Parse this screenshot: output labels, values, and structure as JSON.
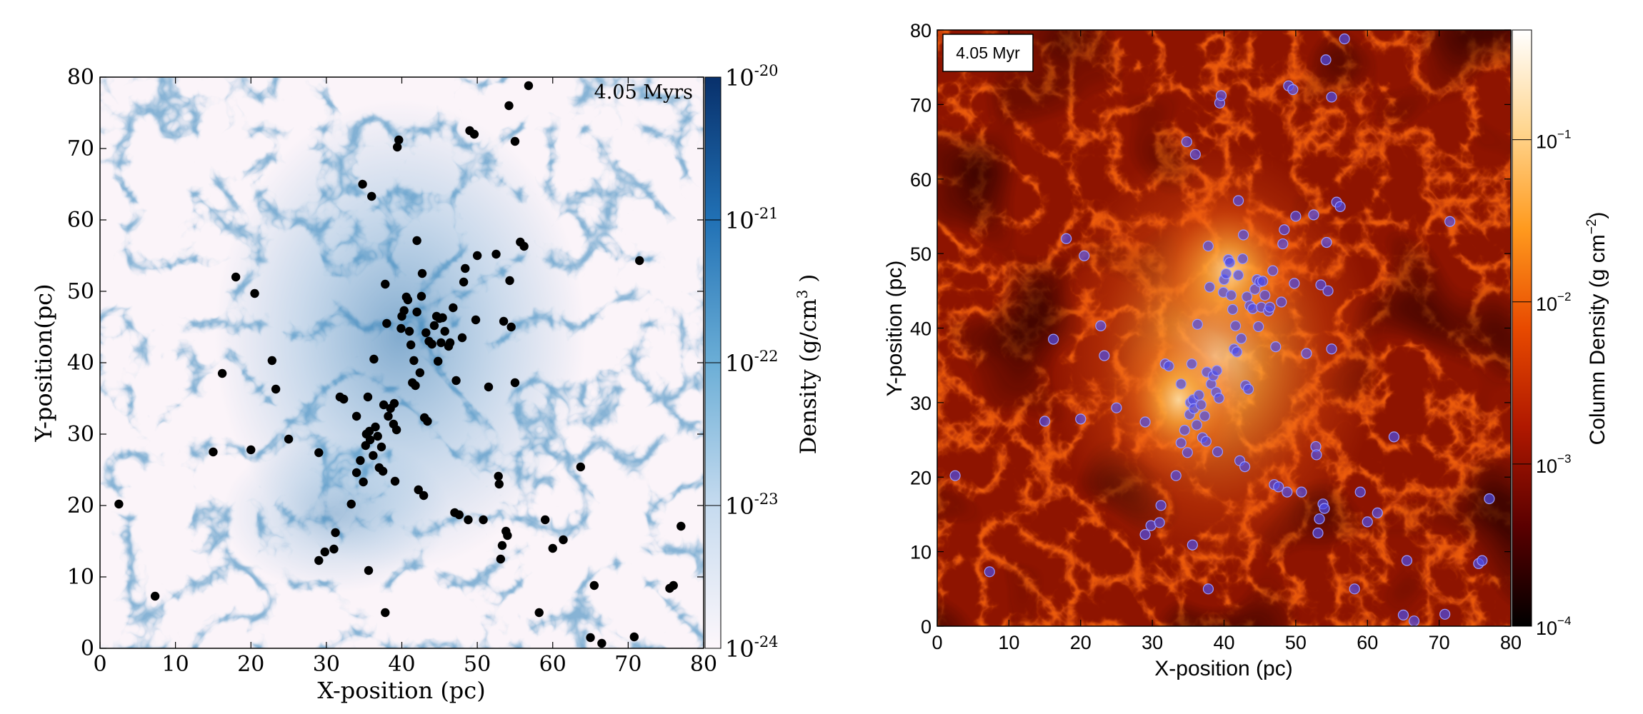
{
  "chart_data": [
    {
      "type": "scatter",
      "style": "density-map",
      "time_label": "4.05 Myrs",
      "xlabel": "X-position (pc)",
      "ylabel": "Y-position(pc)",
      "xlim": [
        0,
        80
      ],
      "ylim": [
        0,
        80
      ],
      "xticks": [
        "0",
        "10",
        "20",
        "30",
        "40",
        "50",
        "60",
        "70",
        "80"
      ],
      "yticks": [
        "0",
        "10",
        "20",
        "30",
        "40",
        "50",
        "60",
        "70",
        "80"
      ],
      "colorbar": {
        "label": "Density (g/cm",
        "label_sup": "3",
        "label_end": " )",
        "scale": "log",
        "colormap": [
          "#fdf7fb",
          "#c6dbef",
          "#6baed6",
          "#2171b5",
          "#08306b"
        ],
        "ticks": [
          {
            "base": "10",
            "exp": "-24"
          },
          {
            "base": "10",
            "exp": "-23"
          },
          {
            "base": "10",
            "exp": "-22"
          },
          {
            "base": "10",
            "exp": "-21"
          },
          {
            "base": "10",
            "exp": "-20"
          }
        ]
      },
      "point_color": "#000000",
      "points": [
        [
          2.5,
          20.2
        ],
        [
          7.3,
          7.3
        ],
        [
          15,
          27.5
        ],
        [
          16.2,
          38.5
        ],
        [
          18,
          52
        ],
        [
          20,
          27.8
        ],
        [
          20.5,
          49.7
        ],
        [
          22.8,
          40.3
        ],
        [
          23.3,
          36.3
        ],
        [
          25,
          29.3
        ],
        [
          29,
          27.4
        ],
        [
          29,
          12.3
        ],
        [
          29.8,
          13.5
        ],
        [
          31.0,
          13.9
        ],
        [
          31.2,
          16.2
        ],
        [
          31.8,
          35.2
        ],
        [
          32.3,
          34.9
        ],
        [
          33.3,
          20.2
        ],
        [
          34.0,
          32.5
        ],
        [
          34.0,
          24.6
        ],
        [
          34.5,
          26.3
        ],
        [
          34.8,
          65.0
        ],
        [
          34.9,
          23.3
        ],
        [
          35.2,
          28.4
        ],
        [
          35.3,
          30.0
        ],
        [
          35.5,
          35.2
        ],
        [
          35.6,
          10.9
        ],
        [
          35.7,
          30.4
        ],
        [
          35.8,
          29.2
        ],
        [
          36.0,
          63.3
        ],
        [
          36.2,
          27.0
        ],
        [
          36.3,
          40.5
        ],
        [
          36.5,
          31.0
        ],
        [
          36.8,
          29.7
        ],
        [
          37.0,
          25.3
        ],
        [
          37.3,
          28.2
        ],
        [
          37.5,
          24.8
        ],
        [
          37.6,
          34.1
        ],
        [
          37.8,
          51.0
        ],
        [
          38.0,
          45.5
        ],
        [
          37.8,
          5.0
        ],
        [
          38.2,
          32.5
        ],
        [
          38.5,
          33.6
        ],
        [
          38.9,
          31.4
        ],
        [
          39.0,
          34.3
        ],
        [
          39.1,
          23.4
        ],
        [
          39.3,
          30.6
        ],
        [
          39.4,
          70.2
        ],
        [
          39.6,
          71.2
        ],
        [
          39.9,
          44.8
        ],
        [
          40.0,
          46.5
        ],
        [
          40.3,
          47.3
        ],
        [
          40.6,
          49.2
        ],
        [
          40.8,
          48.8
        ],
        [
          41.0,
          44.4
        ],
        [
          41.2,
          42.5
        ],
        [
          41.4,
          37.2
        ],
        [
          41.6,
          40.3
        ],
        [
          41.8,
          36.8
        ],
        [
          42.0,
          47.1
        ],
        [
          42.0,
          57.1
        ],
        [
          42.2,
          22.2
        ],
        [
          42.4,
          38.6
        ],
        [
          42.6,
          49.3
        ],
        [
          42.7,
          52.5
        ],
        [
          42.9,
          21.4
        ],
        [
          43.0,
          32.3
        ],
        [
          43.2,
          44.2
        ],
        [
          43.4,
          31.8
        ],
        [
          43.6,
          43.0
        ],
        [
          44.0,
          42.6
        ],
        [
          44.3,
          45.2
        ],
        [
          44.6,
          46.5
        ],
        [
          44.8,
          40.2
        ],
        [
          45.0,
          46.2
        ],
        [
          45.2,
          42.8
        ],
        [
          45.4,
          46.3
        ],
        [
          45.7,
          44.4
        ],
        [
          46.2,
          42.3
        ],
        [
          46.4,
          42.8
        ],
        [
          46.8,
          47.7
        ],
        [
          47.0,
          19.0
        ],
        [
          47.2,
          37.5
        ],
        [
          47.6,
          18.7
        ],
        [
          48.0,
          43.5
        ],
        [
          48.2,
          51.3
        ],
        [
          48.4,
          53.2
        ],
        [
          48.8,
          18.0
        ],
        [
          49.0,
          72.5
        ],
        [
          49.6,
          72.0
        ],
        [
          49.8,
          46.0
        ],
        [
          50.0,
          55.0
        ],
        [
          50.8,
          18.0
        ],
        [
          51.5,
          36.6
        ],
        [
          52.5,
          55.2
        ],
        [
          52.8,
          24.1
        ],
        [
          52.9,
          23.0
        ],
        [
          53.1,
          12.5
        ],
        [
          53.3,
          14.4
        ],
        [
          53.5,
          45.8
        ],
        [
          53.8,
          16.4
        ],
        [
          54.0,
          15.8
        ],
        [
          54.2,
          76.0
        ],
        [
          54.3,
          51.5
        ],
        [
          54.5,
          45.0
        ],
        [
          55.0,
          37.2
        ],
        [
          55.0,
          71.0
        ],
        [
          55.7,
          56.9
        ],
        [
          56.2,
          56.3
        ],
        [
          56.8,
          78.8
        ],
        [
          58.2,
          5.0
        ],
        [
          59.0,
          18.0
        ],
        [
          60.0,
          14.0
        ],
        [
          61.4,
          15.2
        ],
        [
          63.7,
          25.4
        ],
        [
          65.0,
          1.5
        ],
        [
          65.5,
          8.8
        ],
        [
          66.5,
          0.7
        ],
        [
          70.8,
          1.6
        ],
        [
          71.5,
          54.3
        ],
        [
          75.5,
          8.4
        ],
        [
          76.0,
          8.8
        ],
        [
          77.0,
          17.1
        ]
      ]
    },
    {
      "type": "scatter",
      "style": "column-density-map",
      "time_label": "4.05 Myr",
      "xlabel": "X-position (pc)",
      "ylabel": "Y-position (pc)",
      "xlim": [
        0,
        80
      ],
      "ylim": [
        0,
        80
      ],
      "xticks": [
        "0",
        "10",
        "20",
        "30",
        "40",
        "50",
        "60",
        "70",
        "80"
      ],
      "yticks": [
        "0",
        "10",
        "20",
        "30",
        "40",
        "50",
        "60",
        "70",
        "80"
      ],
      "colorbar": {
        "label": "Column Density (g cm",
        "label_sup": "−2",
        "label_end": ")",
        "scale": "log",
        "colormap": [
          "#000000",
          "#5a0000",
          "#b01800",
          "#e84a00",
          "#ff9a1e",
          "#ffd690",
          "#ffffff"
        ],
        "ticks": [
          {
            "base": "10",
            "exp": "−4"
          },
          {
            "base": "10",
            "exp": "−3"
          },
          {
            "base": "10",
            "exp": "−2"
          },
          {
            "base": "10",
            "exp": "−1"
          }
        ]
      },
      "point_color": "#4a4ae8",
      "points": [
        [
          2.5,
          20.2
        ],
        [
          7.3,
          7.3
        ],
        [
          15,
          27.5
        ],
        [
          16.2,
          38.5
        ],
        [
          18,
          52
        ],
        [
          20,
          27.8
        ],
        [
          20.5,
          49.7
        ],
        [
          22.8,
          40.3
        ],
        [
          23.3,
          36.3
        ],
        [
          25,
          29.3
        ],
        [
          29,
          27.4
        ],
        [
          29,
          12.3
        ],
        [
          29.8,
          13.5
        ],
        [
          31.0,
          13.9
        ],
        [
          31.2,
          16.2
        ],
        [
          31.8,
          35.2
        ],
        [
          32.3,
          34.9
        ],
        [
          33.3,
          20.2
        ],
        [
          34.0,
          32.5
        ],
        [
          34.0,
          24.6
        ],
        [
          34.5,
          26.3
        ],
        [
          34.8,
          65.0
        ],
        [
          34.9,
          23.3
        ],
        [
          35.2,
          28.4
        ],
        [
          35.3,
          30.0
        ],
        [
          35.5,
          35.2
        ],
        [
          35.6,
          10.9
        ],
        [
          35.7,
          30.4
        ],
        [
          35.8,
          29.2
        ],
        [
          36.0,
          63.3
        ],
        [
          36.2,
          27.0
        ],
        [
          36.3,
          40.5
        ],
        [
          36.5,
          31.0
        ],
        [
          36.8,
          29.7
        ],
        [
          37.0,
          25.3
        ],
        [
          37.3,
          28.2
        ],
        [
          37.5,
          24.8
        ],
        [
          37.6,
          34.1
        ],
        [
          37.8,
          51.0
        ],
        [
          38.0,
          45.5
        ],
        [
          37.8,
          5.0
        ],
        [
          38.2,
          32.5
        ],
        [
          38.5,
          33.6
        ],
        [
          38.9,
          31.4
        ],
        [
          39.0,
          34.3
        ],
        [
          39.1,
          23.4
        ],
        [
          39.3,
          30.6
        ],
        [
          39.4,
          70.2
        ],
        [
          39.6,
          71.2
        ],
        [
          39.9,
          44.8
        ],
        [
          40.0,
          46.5
        ],
        [
          40.3,
          47.3
        ],
        [
          40.6,
          49.2
        ],
        [
          40.8,
          48.8
        ],
        [
          41.0,
          44.4
        ],
        [
          41.2,
          42.5
        ],
        [
          41.4,
          37.2
        ],
        [
          41.6,
          40.3
        ],
        [
          41.8,
          36.8
        ],
        [
          42.0,
          47.1
        ],
        [
          42.0,
          57.1
        ],
        [
          42.2,
          22.2
        ],
        [
          42.4,
          38.6
        ],
        [
          42.6,
          49.3
        ],
        [
          42.7,
          52.5
        ],
        [
          42.9,
          21.4
        ],
        [
          43.0,
          32.3
        ],
        [
          43.2,
          44.2
        ],
        [
          43.4,
          31.8
        ],
        [
          43.6,
          43.0
        ],
        [
          44.0,
          42.6
        ],
        [
          44.3,
          45.2
        ],
        [
          44.6,
          46.5
        ],
        [
          44.8,
          40.2
        ],
        [
          45.0,
          46.2
        ],
        [
          45.2,
          42.8
        ],
        [
          45.4,
          46.3
        ],
        [
          45.7,
          44.4
        ],
        [
          46.2,
          42.3
        ],
        [
          46.4,
          42.8
        ],
        [
          46.8,
          47.7
        ],
        [
          47.0,
          19.0
        ],
        [
          47.2,
          37.5
        ],
        [
          47.6,
          18.7
        ],
        [
          48.0,
          43.5
        ],
        [
          48.2,
          51.3
        ],
        [
          48.4,
          53.2
        ],
        [
          48.8,
          18.0
        ],
        [
          49.0,
          72.5
        ],
        [
          49.6,
          72.0
        ],
        [
          49.8,
          46.0
        ],
        [
          50.0,
          55.0
        ],
        [
          50.8,
          18.0
        ],
        [
          51.5,
          36.6
        ],
        [
          52.5,
          55.2
        ],
        [
          52.8,
          24.1
        ],
        [
          52.9,
          23.0
        ],
        [
          53.1,
          12.5
        ],
        [
          53.3,
          14.4
        ],
        [
          53.5,
          45.8
        ],
        [
          53.8,
          16.4
        ],
        [
          54.0,
          15.8
        ],
        [
          54.2,
          76.0
        ],
        [
          54.3,
          51.5
        ],
        [
          54.5,
          45.0
        ],
        [
          55.0,
          37.2
        ],
        [
          55.0,
          71.0
        ],
        [
          55.7,
          56.9
        ],
        [
          56.2,
          56.3
        ],
        [
          56.8,
          78.8
        ],
        [
          58.2,
          5.0
        ],
        [
          59.0,
          18.0
        ],
        [
          60.0,
          14.0
        ],
        [
          61.4,
          15.2
        ],
        [
          63.7,
          25.4
        ],
        [
          65.0,
          1.5
        ],
        [
          65.5,
          8.8
        ],
        [
          66.5,
          0.7
        ],
        [
          70.8,
          1.6
        ],
        [
          71.5,
          54.3
        ],
        [
          75.5,
          8.4
        ],
        [
          76.0,
          8.8
        ],
        [
          77.0,
          17.1
        ]
      ]
    }
  ]
}
